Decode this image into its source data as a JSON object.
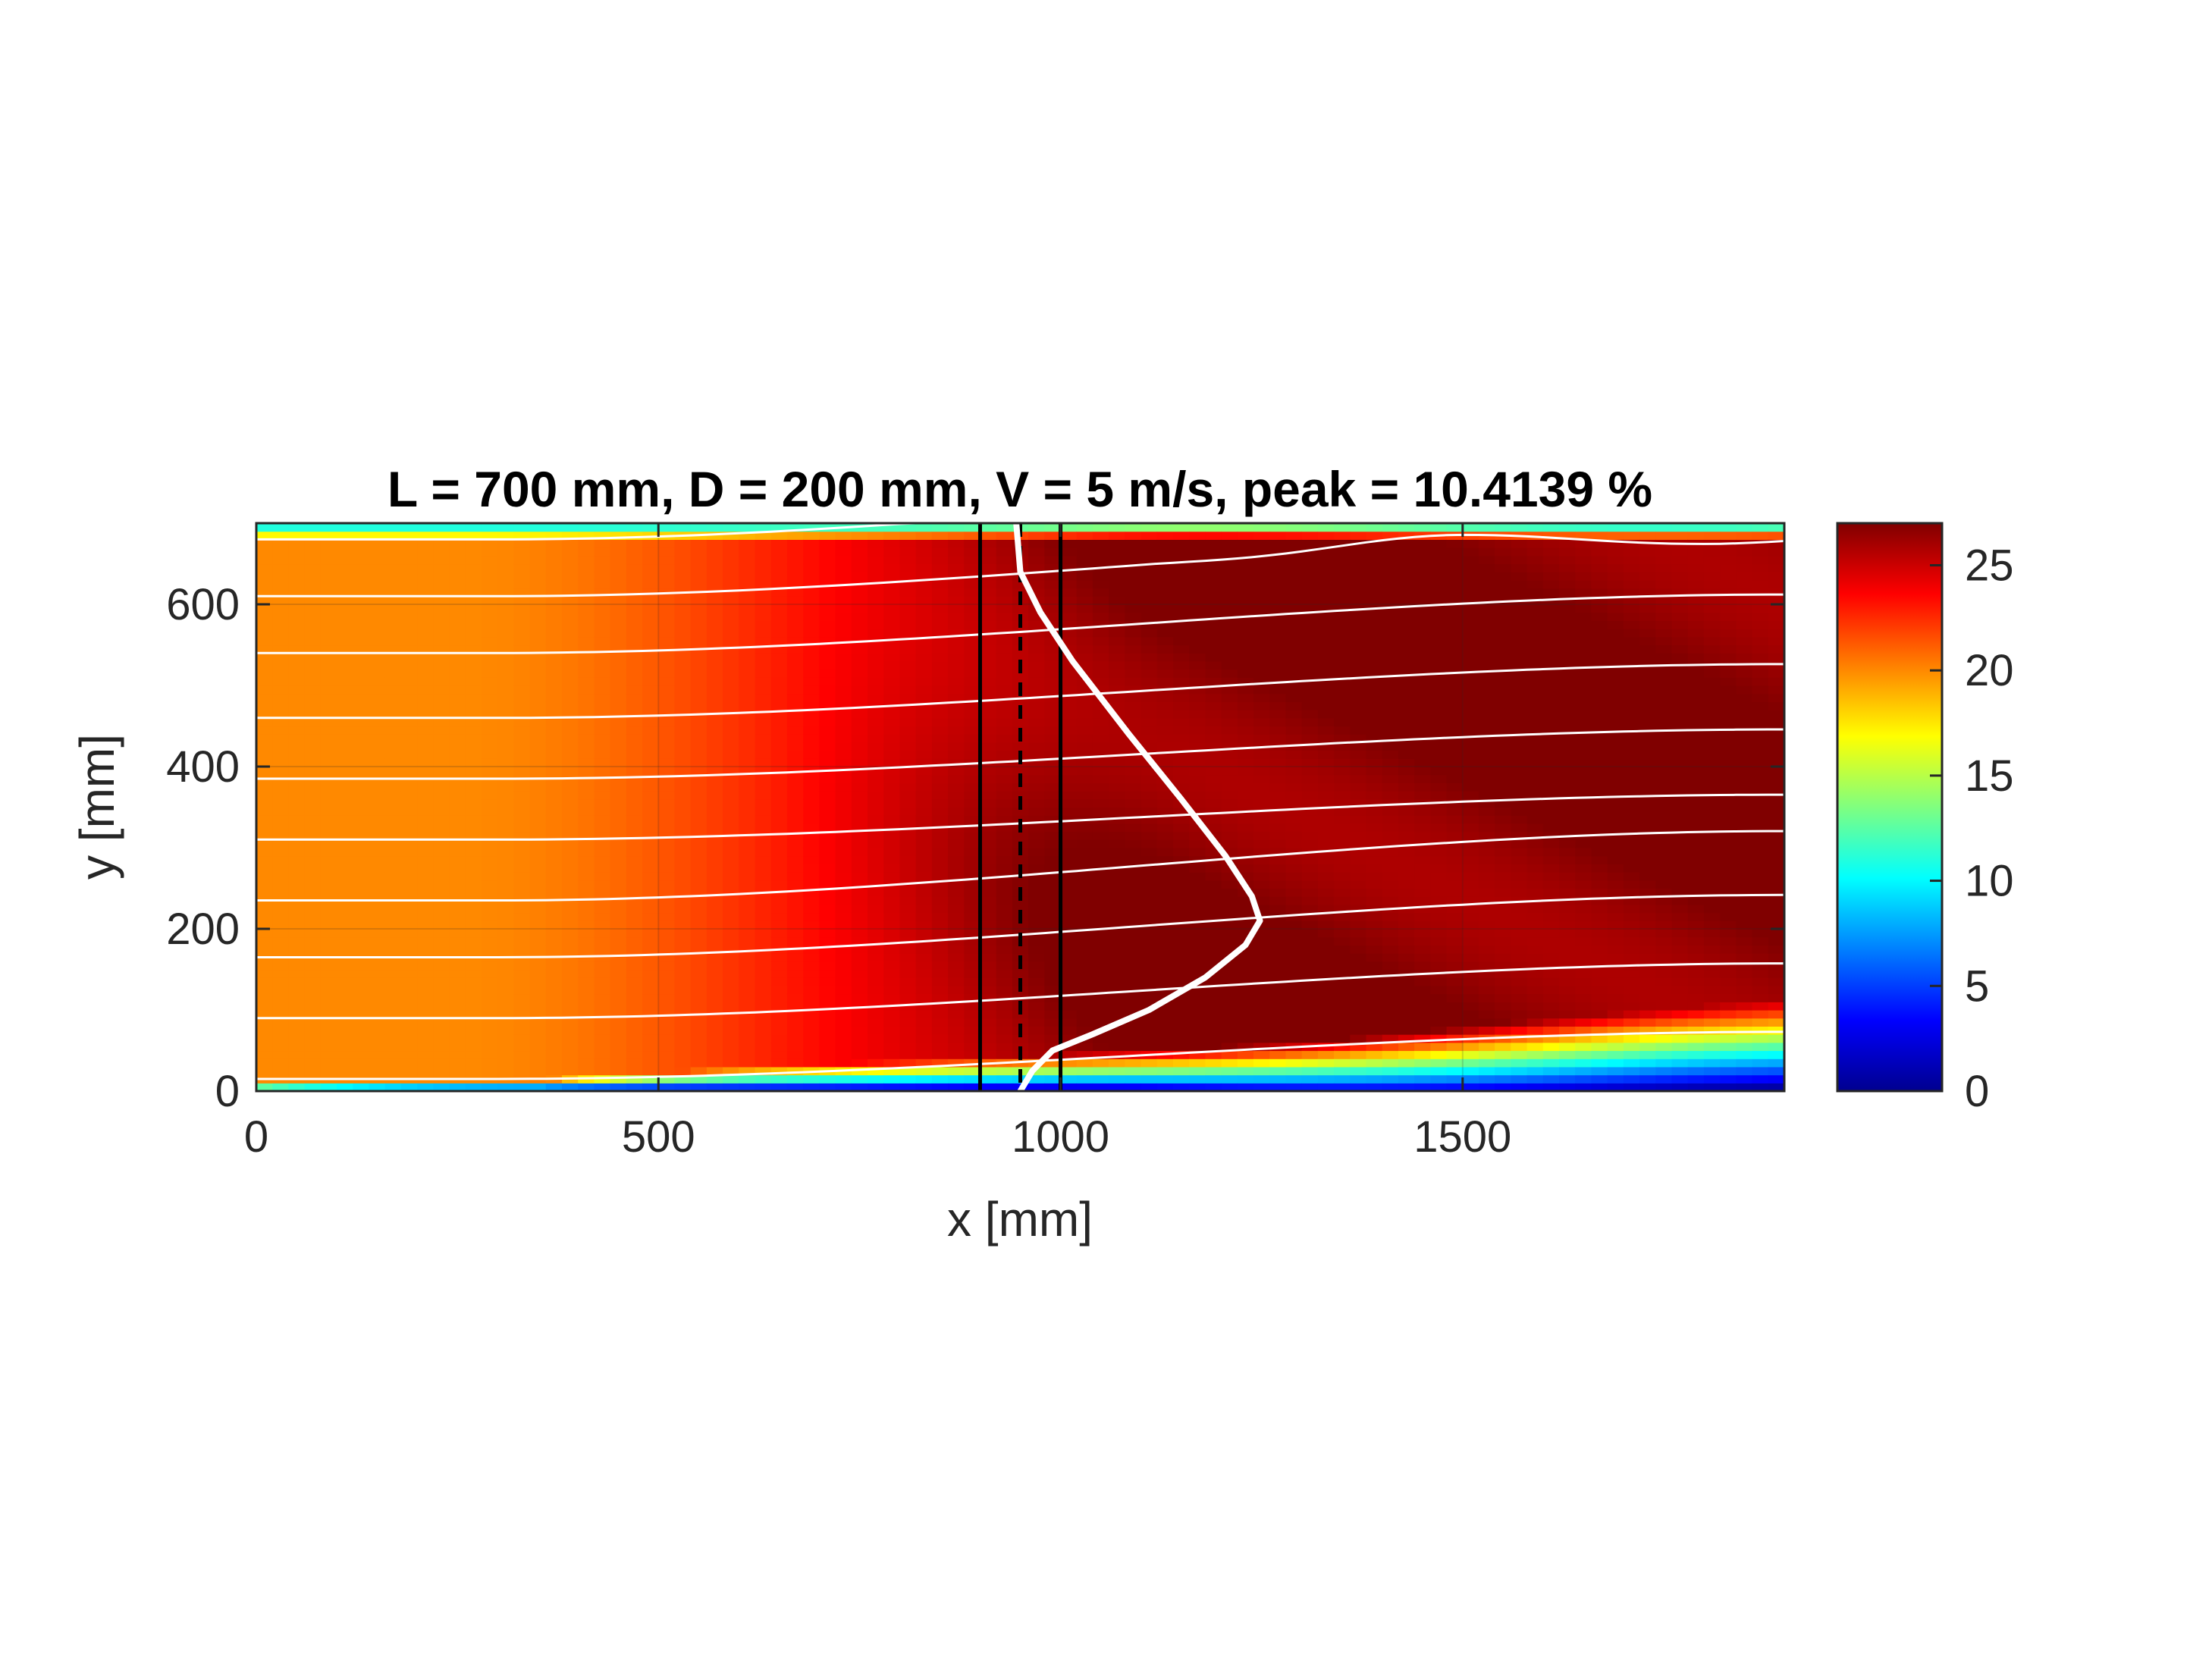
{
  "chart_data": {
    "type": "heatmap",
    "title": "L = 700 mm, D = 200 mm, V = 5 m/s, peak = 10.4139 %",
    "xlabel": "x [mm]",
    "ylabel": "y [mm]",
    "xlim": [
      0,
      1900
    ],
    "ylim": [
      0,
      700
    ],
    "x_ticks": [
      0,
      500,
      1000,
      1500
    ],
    "y_ticks": [
      0,
      200,
      400,
      600
    ],
    "grid": true,
    "colormap": "jet",
    "colorbar": {
      "range": [
        0,
        27
      ],
      "ticks": [
        0,
        5,
        10,
        15,
        20,
        25
      ],
      "placement": "right"
    },
    "field_regions": {
      "upstream_plateau_value": 20,
      "core_max_value": 27,
      "near_wall_min_value": 1,
      "top_wall_min_value": 8
    },
    "streamline_start_y": [
      15,
      90,
      165,
      235,
      310,
      385,
      460,
      540,
      610,
      680
    ],
    "vertical_lines": [
      {
        "x": 900,
        "style": "solid",
        "color": "#000000"
      },
      {
        "x": 950,
        "style": "dashed",
        "color": "#000000"
      },
      {
        "x": 1000,
        "style": "solid",
        "color": "#000000"
      }
    ],
    "profile_curve": {
      "color": "#ffffff",
      "base_x": 950,
      "points": [
        [
          950,
          0
        ],
        [
          965,
          25
        ],
        [
          990,
          50
        ],
        [
          1040,
          70
        ],
        [
          1110,
          100
        ],
        [
          1180,
          140
        ],
        [
          1230,
          180
        ],
        [
          1248,
          210
        ],
        [
          1238,
          240
        ],
        [
          1205,
          290
        ],
        [
          1150,
          360
        ],
        [
          1085,
          440
        ],
        [
          1015,
          530
        ],
        [
          975,
          590
        ],
        [
          950,
          640
        ],
        [
          945,
          700
        ]
      ]
    },
    "colors": {
      "axes": "#262626",
      "streamline": "#ffffff",
      "grid": "#262626"
    }
  }
}
